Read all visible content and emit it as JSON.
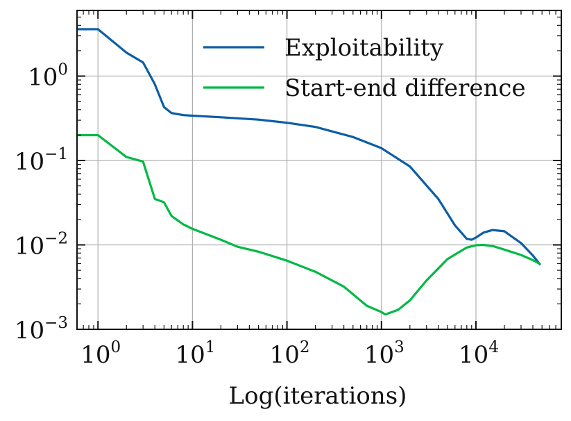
{
  "chart_data": {
    "type": "line",
    "title": "",
    "xlabel": "Log(iterations)",
    "ylabel": "",
    "xscale": "log",
    "yscale": "log",
    "xlim": [
      0.6,
      80000
    ],
    "ylim": [
      0.001,
      6.0
    ],
    "grid": true,
    "legend_position": "top-right",
    "x_ticks": [
      {
        "base": "10",
        "exp": "0",
        "value": 1
      },
      {
        "base": "10",
        "exp": "1",
        "value": 10
      },
      {
        "base": "10",
        "exp": "2",
        "value": 100
      },
      {
        "base": "10",
        "exp": "3",
        "value": 1000
      },
      {
        "base": "10",
        "exp": "4",
        "value": 10000
      }
    ],
    "y_ticks": [
      {
        "base": "10",
        "exp": "0",
        "value": 1
      },
      {
        "base": "10",
        "exp": "−1",
        "value": 0.1
      },
      {
        "base": "10",
        "exp": "−2",
        "value": 0.01
      },
      {
        "base": "10",
        "exp": "−3",
        "value": 0.001
      }
    ],
    "series": [
      {
        "name": "Exploitability",
        "color": "#0c5da5",
        "x": [
          0.6,
          1,
          2,
          3,
          4,
          5,
          6,
          8,
          10,
          20,
          50,
          100,
          200,
          500,
          1000,
          2000,
          4000,
          6000,
          8000,
          9000,
          10000,
          12000,
          15000,
          20000,
          30000,
          40000,
          48000
        ],
        "y": [
          3.6,
          3.6,
          1.9,
          1.45,
          0.8,
          0.43,
          0.365,
          0.345,
          0.34,
          0.325,
          0.305,
          0.28,
          0.25,
          0.19,
          0.14,
          0.085,
          0.035,
          0.017,
          0.0118,
          0.0115,
          0.0122,
          0.014,
          0.015,
          0.0145,
          0.0105,
          0.0075,
          0.0058
        ]
      },
      {
        "name": "Start-end difference",
        "color": "#00b945",
        "x": [
          0.6,
          1,
          2,
          3,
          4,
          5,
          6,
          8,
          10,
          20,
          30,
          50,
          100,
          200,
          400,
          700,
          1000,
          1100,
          1500,
          2000,
          3000,
          5000,
          8000,
          10000,
          12000,
          15000,
          20000,
          30000,
          40000,
          48000
        ],
        "y": [
          0.2,
          0.2,
          0.11,
          0.097,
          0.035,
          0.032,
          0.022,
          0.0175,
          0.0155,
          0.0115,
          0.0095,
          0.0083,
          0.0065,
          0.0048,
          0.0032,
          0.0019,
          0.0016,
          0.0015,
          0.0017,
          0.0022,
          0.0038,
          0.0068,
          0.0093,
          0.0099,
          0.01,
          0.0097,
          0.0088,
          0.0076,
          0.0066,
          0.0059
        ]
      }
    ]
  }
}
